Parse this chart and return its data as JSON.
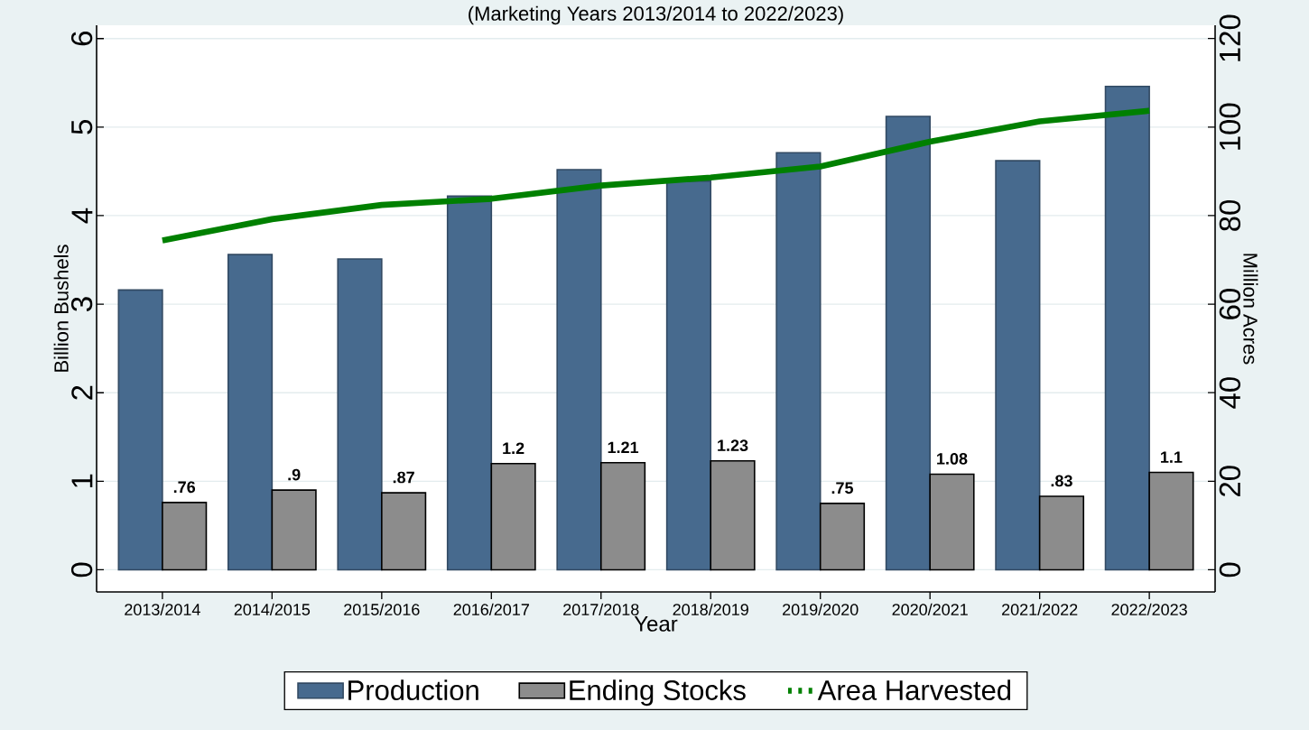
{
  "chart_data": {
    "type": "bar",
    "subtitle": "(Marketing Years 2013/2014 to 2022/2023)",
    "xlabel": "Year",
    "ylabel": "Billion Bushels",
    "y2label": "Million Acres",
    "categories": [
      "2013/2014",
      "2014/2015",
      "2015/2016",
      "2016/2017",
      "2017/2018",
      "2018/2019",
      "2019/2020",
      "2020/2021",
      "2021/2022",
      "2022/2023"
    ],
    "series": [
      {
        "name": "Production",
        "color": "#476a8e",
        "values": [
          3.16,
          3.56,
          3.51,
          4.22,
          4.52,
          4.39,
          4.71,
          5.12,
          4.62,
          5.46
        ]
      },
      {
        "name": "Ending Stocks",
        "color": "#8c8c8c",
        "values": [
          0.76,
          0.9,
          0.87,
          1.2,
          1.21,
          1.23,
          0.75,
          1.08,
          0.83,
          1.1
        ],
        "value_labels": [
          ".76",
          ".9",
          ".87",
          "1.2",
          "1.21",
          "1.23",
          ".75",
          "1.08",
          ".83",
          "1.1"
        ]
      },
      {
        "name": "Area Harvested",
        "type": "line",
        "axis": "y2",
        "color": "#008000",
        "values": [
          74.4,
          79.2,
          82.4,
          83.8,
          86.8,
          88.6,
          91.1,
          96.7,
          101.3,
          103.7
        ]
      }
    ],
    "ylim": [
      -0.25,
      6.15
    ],
    "yticks": [
      0,
      1,
      2,
      3,
      4,
      5,
      6
    ],
    "y2lim": [
      -5,
      123
    ],
    "y2ticks": [
      0,
      20,
      40,
      60,
      80,
      100,
      120
    ],
    "grid": "y",
    "legend": "bottom"
  }
}
